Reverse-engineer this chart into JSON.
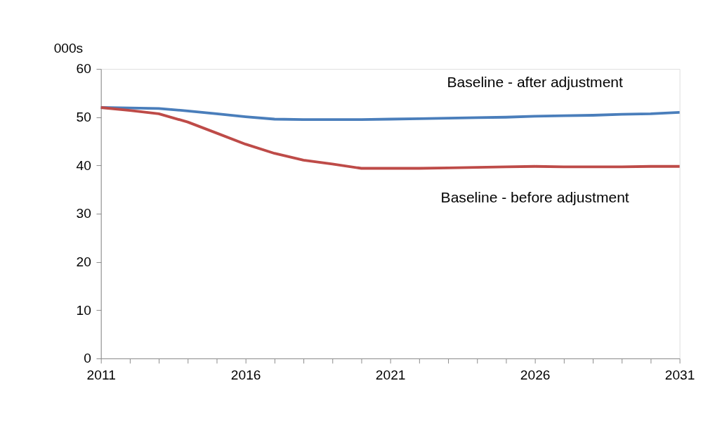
{
  "chart_data": {
    "type": "line",
    "ylabel": "000s",
    "categories": [
      "2011",
      null,
      null,
      null,
      null,
      "2016",
      null,
      null,
      null,
      null,
      "2021",
      null,
      null,
      null,
      null,
      "2026",
      null,
      null,
      null,
      null,
      "2031"
    ],
    "series": [
      {
        "name": "Baseline - after adjustment",
        "color": "#4a7ebb",
        "values": [
          52.0,
          51.9,
          51.8,
          51.3,
          50.7,
          50.1,
          49.6,
          49.5,
          49.5,
          49.5,
          49.6,
          49.7,
          49.8,
          49.9,
          50.0,
          50.2,
          50.3,
          50.4,
          50.6,
          50.7,
          51.0
        ]
      },
      {
        "name": "Baseline - before adjustment",
        "color": "#be4b48",
        "values": [
          52.0,
          51.4,
          50.7,
          49.0,
          46.7,
          44.4,
          42.5,
          41.1,
          40.3,
          39.4,
          39.4,
          39.4,
          39.5,
          39.6,
          39.7,
          39.8,
          39.7,
          39.7,
          39.7,
          39.8,
          39.8
        ]
      }
    ],
    "ylim": [
      0,
      60
    ],
    "yticks": [
      0,
      10,
      20,
      30,
      40,
      50,
      60
    ],
    "grid": false,
    "marker": "none",
    "line_style": "solid"
  }
}
